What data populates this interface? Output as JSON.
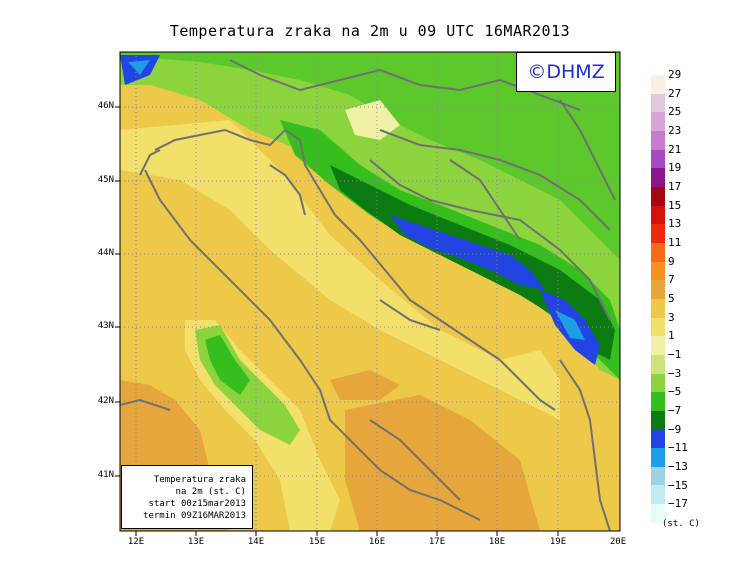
{
  "title": "Temperatura zraka na 2m u 09 UTC 16MAR2013",
  "logo": "©DHMZ",
  "info": {
    "line1": "Temperatura zraka",
    "line2": "na 2m (st. C)",
    "line3": "start 00z15mar2013",
    "line4": "termin 09Z16MAR2013"
  },
  "lat_labels": [
    "46N",
    "45N",
    "44N",
    "43N",
    "42N",
    "41N"
  ],
  "lon_labels": [
    "12E",
    "13E",
    "14E",
    "15E",
    "16E",
    "17E",
    "18E",
    "19E",
    "20E"
  ],
  "legend": {
    "labels": [
      "29",
      "27",
      "25",
      "23",
      "21",
      "19",
      "17",
      "15",
      "13",
      "11",
      "9",
      "7",
      "5",
      "3",
      "1",
      "−1",
      "−3",
      "−5",
      "−7",
      "−9",
      "−11",
      "−13",
      "−15",
      "−17"
    ],
    "colors": [
      "#fbeee2",
      "#e3c7dd",
      "#d8a3d6",
      "#c77ad0",
      "#a64bc1",
      "#8b1588",
      "#a20a10",
      "#d2130c",
      "#ee2a0d",
      "#f46a18",
      "#f6901e",
      "#e7a63b",
      "#eec848",
      "#f2e06b",
      "#eef1a6",
      "#cbe57a",
      "#8cd43d",
      "#36bd1e",
      "#0c7b12",
      "#2244e3",
      "#1a9fe8",
      "#9fd1e4",
      "#c2eaf1",
      "#e8fbfb"
    ],
    "units": "(st. C)"
  }
}
